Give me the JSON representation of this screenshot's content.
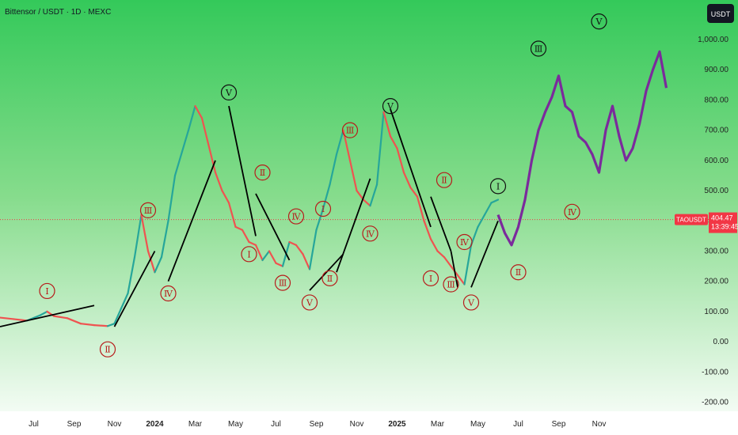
{
  "chart_data": {
    "type": "line",
    "title": "Bittensor / USDT · 1D · MEXC",
    "currency_label": "USDT",
    "grid": false,
    "yticks": [
      "1,000.00",
      "900.00",
      "800.00",
      "700.00",
      "600.00",
      "500.00",
      "400.00",
      "300.00",
      "200.00",
      "100.00",
      "0.00",
      "-100.00",
      "-200.00"
    ],
    "ytick_values": [
      1000,
      900,
      800,
      700,
      600,
      500,
      400,
      300,
      200,
      100,
      0,
      -100,
      -200
    ],
    "ylim": [
      -230,
      1110
    ],
    "xticks": [
      "Jul",
      "Sep",
      "Nov",
      "2024",
      "Mar",
      "May",
      "Jul",
      "Sep",
      "Nov",
      "2025",
      "Mar",
      "May",
      "Jul",
      "Sep",
      "Nov"
    ],
    "xtick_bold": [
      false,
      false,
      false,
      true,
      false,
      false,
      false,
      false,
      false,
      true,
      false,
      false,
      false,
      false,
      false
    ],
    "xlim": [
      0,
      100
    ],
    "xtick_positions": [
      5,
      11,
      17,
      23,
      29,
      35,
      41,
      47,
      53,
      59,
      65,
      71,
      77,
      83,
      89
    ],
    "last_price": {
      "symbol": "TAOUSDT",
      "price": "404.47",
      "countdown": "13:39:45",
      "value": 404.47,
      "color": "#f23645"
    },
    "series": [
      {
        "kind": "price",
        "color": "#26a69a",
        "down_color": "#ef5350",
        "points": [
          [
            0,
            80
          ],
          [
            2,
            75
          ],
          [
            4,
            70
          ],
          [
            6,
            88
          ],
          [
            7,
            100
          ],
          [
            8,
            85
          ],
          [
            10,
            78
          ],
          [
            12,
            60
          ],
          [
            14,
            55
          ],
          [
            16,
            52
          ],
          [
            17,
            60
          ],
          [
            18,
            110
          ],
          [
            19,
            160
          ],
          [
            20,
            280
          ],
          [
            21,
            420
          ],
          [
            22,
            300
          ],
          [
            23,
            230
          ],
          [
            24,
            280
          ],
          [
            25,
            400
          ],
          [
            26,
            550
          ],
          [
            28,
            700
          ],
          [
            29,
            780
          ],
          [
            30,
            740
          ],
          [
            31,
            650
          ],
          [
            32,
            560
          ],
          [
            33,
            500
          ],
          [
            34,
            460
          ],
          [
            35,
            380
          ],
          [
            36,
            370
          ],
          [
            37,
            330
          ],
          [
            38,
            320
          ],
          [
            39,
            270
          ],
          [
            40,
            300
          ],
          [
            41,
            260
          ],
          [
            42,
            250
          ],
          [
            43,
            330
          ],
          [
            44,
            320
          ],
          [
            45,
            290
          ],
          [
            46,
            240
          ],
          [
            47,
            370
          ],
          [
            48,
            440
          ],
          [
            49,
            520
          ],
          [
            50,
            620
          ],
          [
            51,
            700
          ],
          [
            52,
            600
          ],
          [
            53,
            500
          ],
          [
            54,
            470
          ],
          [
            55,
            450
          ],
          [
            56,
            520
          ],
          [
            57,
            760
          ],
          [
            58,
            680
          ],
          [
            59,
            640
          ],
          [
            60,
            560
          ],
          [
            61,
            510
          ],
          [
            62,
            480
          ],
          [
            63,
            400
          ],
          [
            64,
            340
          ],
          [
            65,
            300
          ],
          [
            66,
            280
          ],
          [
            67,
            250
          ],
          [
            68,
            220
          ],
          [
            69,
            190
          ],
          [
            70,
            320
          ],
          [
            71,
            380
          ],
          [
            72,
            420
          ],
          [
            73,
            460
          ],
          [
            74,
            470
          ]
        ]
      },
      {
        "kind": "projection",
        "color": "#7b2a9c",
        "points": [
          [
            74,
            420
          ],
          [
            75,
            360
          ],
          [
            76,
            320
          ],
          [
            77,
            380
          ],
          [
            78,
            470
          ],
          [
            79,
            600
          ],
          [
            80,
            700
          ],
          [
            81,
            760
          ],
          [
            82,
            810
          ],
          [
            83,
            880
          ],
          [
            84,
            780
          ],
          [
            85,
            760
          ],
          [
            86,
            680
          ],
          [
            87,
            660
          ],
          [
            88,
            620
          ],
          [
            89,
            560
          ],
          [
            90,
            700
          ],
          [
            91,
            780
          ],
          [
            92,
            680
          ],
          [
            93,
            600
          ],
          [
            94,
            640
          ],
          [
            95,
            720
          ],
          [
            96,
            830
          ],
          [
            97,
            900
          ],
          [
            98,
            960
          ],
          [
            99,
            840
          ]
        ]
      },
      {
        "kind": "trendlines",
        "color": "#000000",
        "segments": [
          [
            [
              0,
              50
            ],
            [
              14,
              120
            ]
          ],
          [
            [
              17,
              50
            ],
            [
              23,
              300
            ]
          ],
          [
            [
              25,
              200
            ],
            [
              32,
              600
            ]
          ],
          [
            [
              34,
              780
            ],
            [
              38,
              350
            ]
          ],
          [
            [
              38,
              490
            ],
            [
              43,
              270
            ]
          ],
          [
            [
              46,
              170
            ],
            [
              51,
              290
            ]
          ],
          [
            [
              50,
              230
            ],
            [
              55,
              540
            ]
          ],
          [
            [
              58,
              770
            ],
            [
              64,
              380
            ]
          ],
          [
            [
              64,
              480
            ],
            [
              67,
              300
            ]
          ],
          [
            [
              67,
              300
            ],
            [
              68,
              180
            ]
          ],
          [
            [
              70,
              180
            ],
            [
              74,
              400
            ]
          ]
        ]
      }
    ],
    "annotations": [
      {
        "text": "Ⅰ",
        "x": 7,
        "y": 168,
        "color": "red"
      },
      {
        "text": "Ⅱ",
        "x": 16,
        "y": -25,
        "color": "red"
      },
      {
        "text": "Ⅲ",
        "x": 22,
        "y": 435,
        "color": "red"
      },
      {
        "text": "Ⅳ",
        "x": 25,
        "y": 160,
        "color": "red"
      },
      {
        "text": "Ⅴ",
        "x": 34,
        "y": 825,
        "color": "black"
      },
      {
        "text": "Ⅰ",
        "x": 37,
        "y": 290,
        "color": "red"
      },
      {
        "text": "Ⅱ",
        "x": 39,
        "y": 560,
        "color": "red"
      },
      {
        "text": "Ⅲ",
        "x": 42,
        "y": 195,
        "color": "red"
      },
      {
        "text": "Ⅳ",
        "x": 44,
        "y": 415,
        "color": "red"
      },
      {
        "text": "Ⅴ",
        "x": 46,
        "y": 130,
        "color": "red"
      },
      {
        "text": "Ⅰ",
        "x": 48,
        "y": 440,
        "color": "red"
      },
      {
        "text": "Ⅱ",
        "x": 49,
        "y": 210,
        "color": "red"
      },
      {
        "text": "Ⅲ",
        "x": 52,
        "y": 700,
        "color": "red"
      },
      {
        "text": "Ⅳ",
        "x": 55,
        "y": 358,
        "color": "red"
      },
      {
        "text": "Ⅴ",
        "x": 58,
        "y": 780,
        "color": "black"
      },
      {
        "text": "Ⅰ",
        "x": 64,
        "y": 210,
        "color": "red"
      },
      {
        "text": "Ⅱ",
        "x": 66,
        "y": 535,
        "color": "red"
      },
      {
        "text": "Ⅲ",
        "x": 67,
        "y": 190,
        "color": "red"
      },
      {
        "text": "Ⅳ",
        "x": 69,
        "y": 330,
        "color": "red"
      },
      {
        "text": "Ⅴ",
        "x": 70,
        "y": 130,
        "color": "red"
      },
      {
        "text": "Ⅰ",
        "x": 74,
        "y": 515,
        "color": "black"
      },
      {
        "text": "Ⅱ",
        "x": 77,
        "y": 230,
        "color": "red"
      },
      {
        "text": "Ⅲ",
        "x": 80,
        "y": 970,
        "color": "black"
      },
      {
        "text": "Ⅳ",
        "x": 85,
        "y": 430,
        "color": "red"
      },
      {
        "text": "Ⅴ",
        "x": 89,
        "y": 1060,
        "color": "black"
      }
    ]
  }
}
